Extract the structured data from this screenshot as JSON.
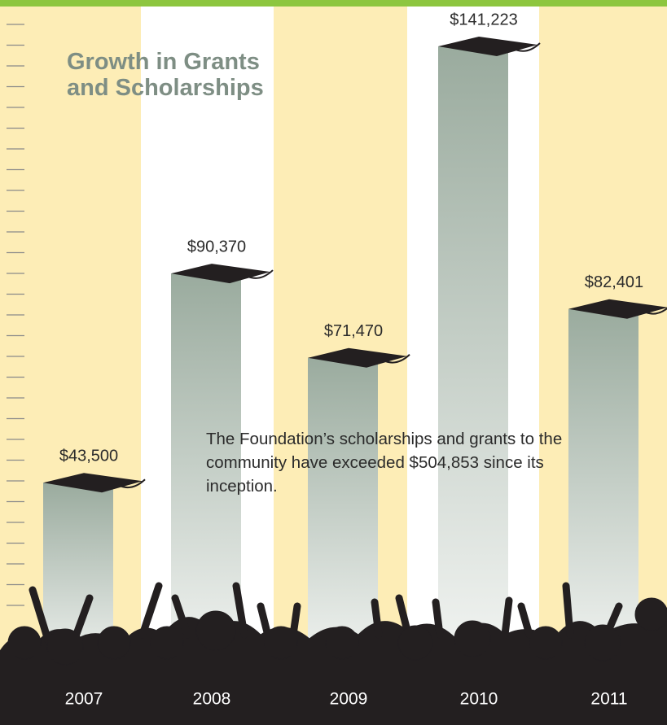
{
  "chart_data": {
    "type": "bar",
    "title": "Growth in Grants and Scholarships",
    "annotation": "The Foundation’s scholarships and grants to the community have exceeded $504,853 since its inception.",
    "categories": [
      "2007",
      "2008",
      "2009",
      "2010",
      "2011"
    ],
    "values": [
      43500,
      90370,
      71470,
      141223,
      82401
    ],
    "value_labels": [
      "$43,500",
      "$90,370",
      "$71,470",
      "$141,223",
      "$82,401"
    ],
    "color": "#9aab9e"
  }
}
